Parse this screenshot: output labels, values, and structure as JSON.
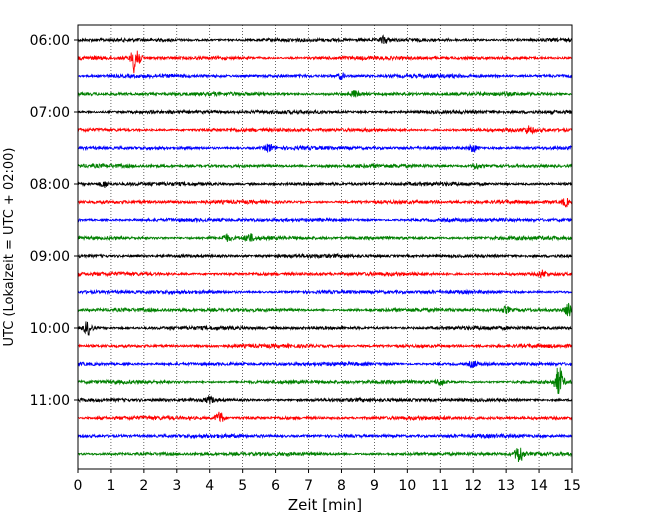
{
  "chart_data": {
    "type": "line",
    "title": "",
    "xlabel": "Zeit  [min]",
    "ylabel": "UTC (Lokalzeit = UTC + 02:00)",
    "xlim": [
      0,
      15
    ],
    "x_ticks": [
      "0",
      "1",
      "2",
      "3",
      "4",
      "5",
      "6",
      "7",
      "8",
      "9",
      "10",
      "11",
      "12",
      "13",
      "14",
      "15"
    ],
    "y_ticks": [
      "06:00",
      "07:00",
      "08:00",
      "09:00",
      "10:00",
      "11:00"
    ],
    "trace_interval_minutes": 15,
    "first_trace": "06:00",
    "grid": "vertical dotted at each minute",
    "trace_colors": [
      "#000000",
      "#ff0000",
      "#0000ff",
      "#008000"
    ],
    "traces": [
      {
        "start": "06:00",
        "color": "#000000",
        "events": [
          {
            "t": 9.3,
            "amp": 3.5
          }
        ]
      },
      {
        "start": "06:15",
        "color": "#ff0000",
        "events": [
          {
            "t": 1.75,
            "amp": 17
          }
        ]
      },
      {
        "start": "06:30",
        "color": "#0000ff",
        "events": [
          {
            "t": 8.0,
            "amp": 3
          }
        ]
      },
      {
        "start": "06:45",
        "color": "#008000",
        "events": [
          {
            "t": 8.4,
            "amp": 3
          }
        ]
      },
      {
        "start": "07:00",
        "color": "#000000",
        "events": []
      },
      {
        "start": "07:15",
        "color": "#ff0000",
        "events": [
          {
            "t": 13.7,
            "amp": 3.5
          }
        ]
      },
      {
        "start": "07:30",
        "color": "#0000ff",
        "events": [
          {
            "t": 5.8,
            "amp": 4
          },
          {
            "t": 12.0,
            "amp": 3.5
          }
        ]
      },
      {
        "start": "07:45",
        "color": "#008000",
        "events": [
          {
            "t": 12.1,
            "amp": 3
          }
        ]
      },
      {
        "start": "08:00",
        "color": "#000000",
        "events": [
          {
            "t": 0.8,
            "amp": 3
          }
        ]
      },
      {
        "start": "08:15",
        "color": "#ff0000",
        "events": [
          {
            "t": 14.8,
            "amp": 4
          }
        ]
      },
      {
        "start": "08:30",
        "color": "#0000ff",
        "events": []
      },
      {
        "start": "08:45",
        "color": "#008000",
        "events": [
          {
            "t": 5.2,
            "amp": 3.5
          },
          {
            "t": 4.5,
            "amp": 3
          }
        ]
      },
      {
        "start": "09:00",
        "color": "#000000",
        "events": []
      },
      {
        "start": "09:15",
        "color": "#ff0000",
        "events": [
          {
            "t": 14.1,
            "amp": 3
          }
        ]
      },
      {
        "start": "09:30",
        "color": "#0000ff",
        "events": []
      },
      {
        "start": "09:45",
        "color": "#008000",
        "events": [
          {
            "t": 14.9,
            "amp": 6
          },
          {
            "t": 13.0,
            "amp": 3
          }
        ]
      },
      {
        "start": "10:00",
        "color": "#000000",
        "events": [
          {
            "t": 0.3,
            "amp": 7
          }
        ]
      },
      {
        "start": "10:15",
        "color": "#ff0000",
        "events": []
      },
      {
        "start": "10:30",
        "color": "#0000ff",
        "events": [
          {
            "t": 12.0,
            "amp": 3
          }
        ]
      },
      {
        "start": "10:45",
        "color": "#008000",
        "events": [
          {
            "t": 14.6,
            "amp": 15
          },
          {
            "t": 11.0,
            "amp": 3
          }
        ]
      },
      {
        "start": "11:00",
        "color": "#000000",
        "events": [
          {
            "t": 4.0,
            "amp": 3
          }
        ]
      },
      {
        "start": "11:15",
        "color": "#ff0000",
        "events": [
          {
            "t": 4.3,
            "amp": 6
          }
        ]
      },
      {
        "start": "11:30",
        "color": "#0000ff",
        "events": []
      },
      {
        "start": "11:45",
        "color": "#008000",
        "events": [
          {
            "t": 13.4,
            "amp": 9
          }
        ]
      }
    ]
  }
}
